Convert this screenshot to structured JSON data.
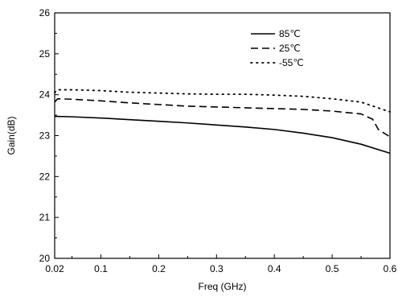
{
  "chart_data": {
    "type": "line",
    "title": "",
    "xlabel": "Freq (GHz)",
    "ylabel": "Gain(dB)",
    "xlim": [
      0.02,
      0.6
    ],
    "ylim": [
      20,
      26
    ],
    "x_ticks": [
      0.02,
      0.1,
      0.2,
      0.3,
      0.4,
      0.5,
      0.6
    ],
    "x_tick_labels": [
      "0.02",
      "0.1",
      "0.2",
      "0.3",
      "0.4",
      "0.5",
      "0.6"
    ],
    "y_ticks": [
      20,
      21,
      22,
      23,
      24,
      25,
      26
    ],
    "y_tick_labels": [
      "20",
      "21",
      "22",
      "23",
      "24",
      "25",
      "26"
    ],
    "grid": false,
    "legend_position": "top-right",
    "series": [
      {
        "name": "85℃",
        "line_style": "solid",
        "color": "#000000",
        "x": [
          0.02,
          0.05,
          0.1,
          0.15,
          0.2,
          0.25,
          0.3,
          0.35,
          0.4,
          0.45,
          0.5,
          0.55,
          0.6
        ],
        "y": [
          23.47,
          23.46,
          23.43,
          23.39,
          23.35,
          23.31,
          23.26,
          23.21,
          23.15,
          23.06,
          22.95,
          22.79,
          22.57
        ]
      },
      {
        "name": "25℃",
        "line_style": "dashed",
        "color": "#000000",
        "x": [
          0.02,
          0.025,
          0.05,
          0.1,
          0.15,
          0.2,
          0.25,
          0.3,
          0.35,
          0.4,
          0.45,
          0.5,
          0.55,
          0.57,
          0.58,
          0.6
        ],
        "y": [
          23.82,
          23.9,
          23.89,
          23.85,
          23.8,
          23.76,
          23.72,
          23.7,
          23.68,
          23.66,
          23.64,
          23.6,
          23.53,
          23.4,
          23.15,
          22.97
        ]
      },
      {
        "name": "-55℃",
        "line_style": "dotted",
        "color": "#000000",
        "x": [
          0.02,
          0.025,
          0.05,
          0.1,
          0.15,
          0.2,
          0.25,
          0.3,
          0.35,
          0.4,
          0.45,
          0.5,
          0.55,
          0.6
        ],
        "y": [
          24.05,
          24.12,
          24.12,
          24.1,
          24.06,
          24.04,
          24.02,
          24.01,
          24.01,
          23.99,
          23.96,
          23.9,
          23.82,
          23.58
        ]
      }
    ]
  }
}
